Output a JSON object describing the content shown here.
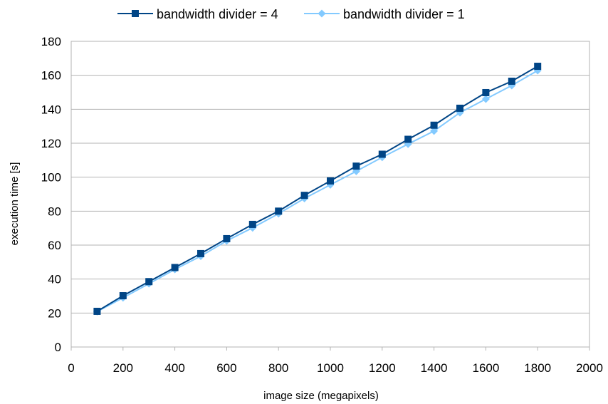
{
  "chart_data": {
    "type": "line",
    "xlabel": "image size (megapixels)",
    "ylabel": "execution time [s]",
    "xlim": [
      0,
      2000
    ],
    "ylim": [
      0,
      180
    ],
    "x_ticks": [
      0,
      200,
      400,
      600,
      800,
      1000,
      1200,
      1400,
      1600,
      1800,
      2000
    ],
    "y_ticks": [
      0,
      20,
      40,
      60,
      80,
      100,
      120,
      140,
      160,
      180
    ],
    "grid": "horizontal",
    "legend_position": "top-center",
    "x": [
      100,
      200,
      300,
      400,
      500,
      600,
      700,
      800,
      900,
      1000,
      1100,
      1200,
      1300,
      1400,
      1500,
      1600,
      1700,
      1800
    ],
    "series": [
      {
        "name": "bandwidth divider = 4",
        "marker": "square",
        "color": "#004586",
        "values": [
          21,
          30.2,
          38.5,
          46.8,
          55,
          63.8,
          72.2,
          80,
          89.3,
          97.8,
          106.5,
          113.5,
          122.3,
          130.6,
          140.6,
          149.8,
          156.5,
          165.3
        ]
      },
      {
        "name": "bandwidth divider = 1",
        "marker": "diamond",
        "color": "#83caff",
        "values": [
          20.8,
          29,
          37.3,
          45.7,
          53.5,
          62.5,
          70.2,
          78.5,
          87.5,
          95.5,
          103.5,
          111.7,
          119.5,
          127.2,
          138,
          146,
          154,
          162.8
        ]
      }
    ]
  }
}
